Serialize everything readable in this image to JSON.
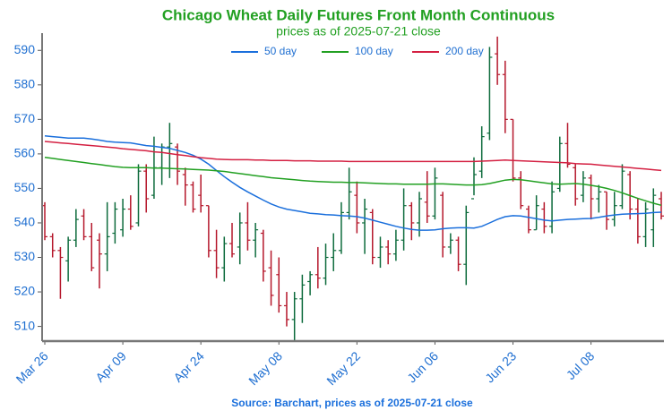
{
  "chart_data": {
    "type": "ohlc",
    "title": "Chicago Wheat Daily Futures Front Month Continuous",
    "subtitle": "prices as of 2025-07-21 close",
    "source": "Source: Barchart, prices as of 2025-07-21 close",
    "categories": [
      "Mar 26",
      null,
      null,
      null,
      null,
      null,
      null,
      null,
      null,
      null,
      "Apr 09",
      null,
      null,
      null,
      null,
      null,
      null,
      null,
      null,
      null,
      "Apr 24",
      null,
      null,
      null,
      null,
      null,
      null,
      null,
      null,
      null,
      "May 08",
      null,
      null,
      null,
      null,
      null,
      null,
      null,
      null,
      null,
      "May 22",
      null,
      null,
      null,
      null,
      null,
      null,
      null,
      null,
      null,
      "Jun 06",
      null,
      null,
      null,
      null,
      null,
      null,
      null,
      null,
      null,
      "Jun 23",
      null,
      null,
      null,
      null,
      null,
      null,
      null,
      null,
      null,
      "Jul 08",
      null,
      null,
      null,
      null,
      null,
      null,
      null,
      null,
      null
    ],
    "ohlc": {
      "open": [
        545,
        536,
        532,
        529,
        535,
        542,
        536,
        535,
        531,
        537,
        538,
        544,
        540,
        555,
        548,
        556,
        562,
        562,
        554,
        551,
        548,
        545,
        532,
        527,
        534,
        533,
        540,
        535,
        537,
        527,
        525,
        516,
        512,
        518,
        523,
        525,
        524,
        530,
        532,
        543,
        548,
        540,
        543,
        530,
        533,
        531,
        535,
        545,
        540,
        546,
        542,
        548,
        533,
        535,
        528,
        547,
        555,
        566,
        589,
        583,
        570,
        553,
        544,
        538,
        544,
        539,
        550,
        563,
        556,
        548,
        553,
        547,
        549,
        541,
        545,
        554,
        544,
        536,
        538,
        547
      ],
      "high": [
        546,
        537,
        533,
        536,
        544,
        544,
        540,
        537,
        546,
        546,
        547,
        548,
        557,
        557,
        565,
        563,
        569,
        563,
        556,
        552,
        554,
        545,
        538,
        536,
        540,
        543,
        546,
        540,
        538,
        532,
        530,
        520,
        520,
        525,
        526,
        533,
        534,
        537,
        546,
        556,
        552,
        547,
        544,
        536,
        535,
        538,
        550,
        546,
        549,
        555,
        556,
        549,
        537,
        536,
        545,
        559,
        568,
        591,
        594,
        587,
        570,
        555,
        545,
        548,
        546,
        552,
        565,
        569,
        557,
        555,
        554,
        551,
        549,
        549,
        557,
        555,
        547,
        546,
        550,
        549
      ],
      "low": [
        535,
        530,
        518,
        523,
        533,
        535,
        526,
        521,
        526,
        534,
        536,
        538,
        539,
        543,
        547,
        551,
        553,
        551,
        545,
        543,
        543,
        530,
        524,
        523,
        530,
        528,
        532,
        530,
        523,
        516,
        514,
        510,
        506,
        511,
        519,
        521,
        522,
        526,
        531,
        541,
        537,
        531,
        528,
        527,
        528,
        529,
        532,
        535,
        536,
        540,
        541,
        530,
        531,
        526,
        522,
        548,
        553,
        564,
        580,
        566,
        552,
        544,
        537,
        538,
        537,
        537,
        549,
        556,
        545,
        546,
        541,
        543,
        538,
        539,
        544,
        541,
        534,
        533,
        533,
        541
      ],
      "close": [
        536,
        532,
        530,
        535,
        541,
        536,
        527,
        531,
        536,
        544,
        544,
        539,
        555,
        547,
        556,
        562,
        563,
        555,
        551,
        544,
        545,
        532,
        527,
        534,
        531,
        540,
        535,
        538,
        526,
        519,
        516,
        512,
        518,
        522,
        525,
        524,
        530,
        532,
        543,
        549,
        540,
        544,
        530,
        533,
        531,
        535,
        545,
        540,
        547,
        542,
        553,
        533,
        535,
        528,
        543,
        554,
        565,
        588,
        583,
        570,
        553,
        545,
        538,
        545,
        539,
        549,
        563,
        557,
        547,
        553,
        547,
        549,
        541,
        545,
        555,
        544,
        536,
        544,
        548,
        542
      ]
    },
    "up_color": "#0d6b3c",
    "down_color": "#b5172b",
    "series": [
      {
        "name": "50 day",
        "color": "#1a6fdc",
        "values": [
          565.2,
          565.0,
          564.8,
          564.6,
          564.6,
          564.6,
          564.3,
          564.0,
          563.6,
          563.4,
          563.3,
          563.2,
          562.8,
          562.4,
          562.2,
          561.9,
          561.6,
          561.0,
          560.4,
          559.6,
          558.5,
          557.0,
          555.2,
          553.4,
          551.8,
          550.3,
          549.0,
          547.8,
          546.6,
          545.5,
          544.6,
          544.0,
          543.6,
          543.2,
          542.8,
          542.6,
          542.4,
          542.3,
          542.1,
          542.0,
          541.8,
          541.4,
          540.8,
          540.2,
          539.6,
          539.0,
          538.5,
          538.1,
          537.9,
          537.9,
          538.0,
          538.3,
          538.5,
          538.6,
          538.6,
          538.5,
          539.0,
          540.0,
          541.0,
          541.8,
          542.1,
          542.0,
          541.6,
          541.2,
          540.8,
          540.6,
          540.8,
          541.0,
          541.1,
          541.2,
          541.3,
          541.6,
          542.0,
          542.3,
          542.5,
          542.6,
          542.7,
          542.8,
          543.0,
          543.1
        ]
      },
      {
        "name": "100 day",
        "color": "#22a022",
        "values": [
          559.0,
          558.7,
          558.4,
          558.1,
          557.8,
          557.5,
          557.2,
          556.9,
          556.6,
          556.3,
          556.1,
          556.0,
          556.0,
          556.0,
          555.9,
          555.9,
          555.8,
          555.7,
          555.6,
          555.5,
          555.4,
          555.3,
          555.1,
          554.9,
          554.6,
          554.3,
          554.0,
          553.7,
          553.4,
          553.1,
          552.9,
          552.7,
          552.5,
          552.3,
          552.1,
          552.0,
          551.9,
          551.8,
          551.8,
          551.7,
          551.7,
          551.6,
          551.5,
          551.4,
          551.3,
          551.3,
          551.2,
          551.2,
          551.2,
          551.2,
          551.3,
          551.3,
          551.2,
          551.1,
          551.0,
          551.0,
          551.1,
          551.4,
          551.9,
          552.4,
          552.6,
          552.5,
          552.2,
          551.9,
          551.6,
          551.3,
          551.2,
          551.3,
          551.4,
          551.2,
          550.9,
          550.5,
          550.0,
          549.4,
          548.7,
          547.9,
          547.1,
          546.4,
          545.7,
          545.1
        ]
      },
      {
        "name": "200 day",
        "color": "#d42042",
        "values": [
          563.6,
          563.4,
          563.2,
          563.0,
          562.8,
          562.6,
          562.4,
          562.2,
          562.0,
          561.8,
          561.5,
          561.3,
          561.1,
          560.9,
          560.6,
          560.4,
          560.1,
          559.8,
          559.5,
          559.2,
          558.9,
          558.7,
          558.5,
          558.4,
          558.3,
          558.3,
          558.3,
          558.2,
          558.2,
          558.1,
          558.1,
          558.1,
          558.0,
          558.0,
          558.0,
          557.9,
          557.9,
          557.9,
          557.9,
          557.8,
          557.8,
          557.8,
          557.8,
          557.8,
          557.8,
          557.8,
          557.8,
          557.8,
          557.8,
          557.8,
          557.8,
          557.8,
          557.8,
          557.8,
          557.8,
          557.8,
          557.9,
          558.0,
          558.1,
          558.2,
          558.1,
          558.0,
          557.9,
          557.8,
          557.7,
          557.6,
          557.5,
          557.4,
          557.2,
          557.1,
          557.0,
          556.8,
          556.6,
          556.4,
          556.2,
          556.0,
          555.8,
          555.6,
          555.4,
          555.2
        ]
      }
    ],
    "ylim": [
      506,
      595
    ],
    "yticks": [
      510,
      520,
      530,
      540,
      550,
      560,
      570,
      580,
      590
    ],
    "legend": "top"
  }
}
